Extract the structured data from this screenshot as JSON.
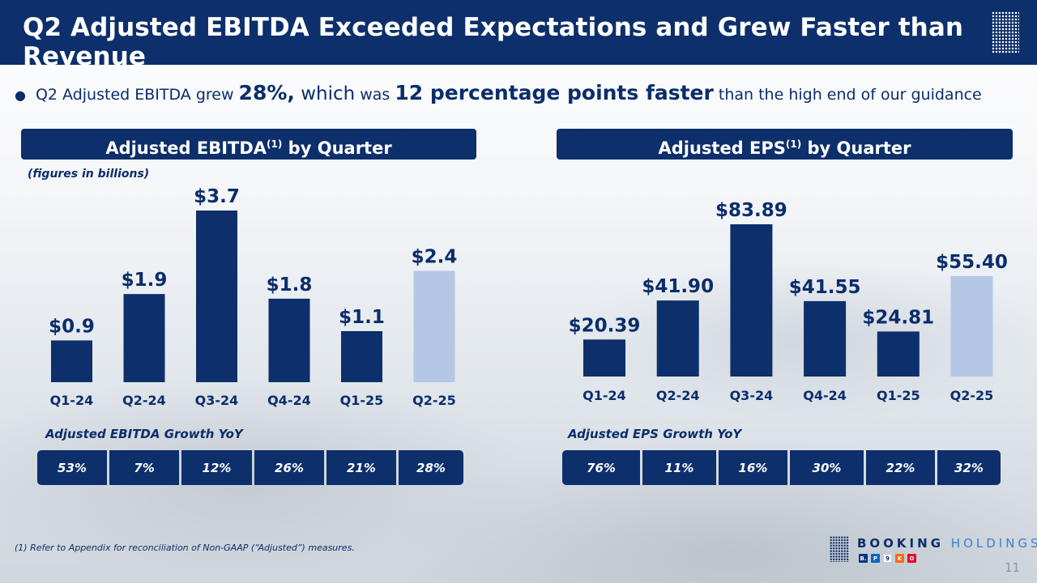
{
  "header": {
    "title": "Q2 Adjusted EBITDA Exceeded Expectations and Grew Faster than Revenue"
  },
  "bullet": {
    "marker": "●",
    "part1": "Q2 Adjusted EBITDA grew ",
    "highlight1": "28%,",
    "part2": " which",
    "part3": " was ",
    "highlight2": "12 percentage points faster",
    "part4": " than the high end of our guidance"
  },
  "panels": {
    "ebitda": {
      "header_text": "Adjusted EBITDA",
      "header_sup": "(1)",
      "header_suffix": " by Quarter",
      "note": "(figures in billions)",
      "growth_title": "Adjusted EBITDA Growth YoY",
      "growth": [
        "53%",
        "7%",
        "12%",
        "26%",
        "21%",
        "28%"
      ]
    },
    "eps": {
      "header_text": "Adjusted EPS",
      "header_sup": "(1)",
      "header_suffix": " by Quarter",
      "growth_title": "Adjusted EPS Growth YoY",
      "growth": [
        "76%",
        "11%",
        "16%",
        "30%",
        "22%",
        "32%"
      ]
    }
  },
  "chart_data": [
    {
      "type": "bar",
      "title": "Adjusted EBITDA by Quarter",
      "unit": "billions",
      "categories": [
        "Q1-24",
        "Q2-24",
        "Q3-24",
        "Q4-24",
        "Q1-25",
        "Q2-25"
      ],
      "values": [
        0.9,
        1.9,
        3.7,
        1.8,
        1.1,
        2.4
      ],
      "labels": [
        "$0.9",
        "$1.9",
        "$3.7",
        "$1.8",
        "$1.1",
        "$2.4"
      ],
      "highlight_index": 5,
      "ylim": [
        0,
        3.7
      ],
      "colors": {
        "bar": "#0d2f6b",
        "highlight": "#b4c7e7"
      }
    },
    {
      "type": "bar",
      "title": "Adjusted EPS by Quarter",
      "categories": [
        "Q1-24",
        "Q2-24",
        "Q3-24",
        "Q4-24",
        "Q1-25",
        "Q2-25"
      ],
      "values": [
        20.39,
        41.9,
        83.89,
        41.55,
        24.81,
        55.4
      ],
      "labels": [
        "$20.39",
        "$41.90",
        "$83.89",
        "$41.55",
        "$24.81",
        "$55.40"
      ],
      "highlight_index": 5,
      "ylim": [
        0,
        83.89
      ],
      "colors": {
        "bar": "#0d2f6b",
        "highlight": "#b4c7e7"
      }
    }
  ],
  "footnote": "(1) Refer to Appendix for reconciliation of Non-GAAP (“Adjusted”) measures.",
  "logo": {
    "word1": "BOOKING",
    "word2": "HOLDINGS",
    "brands": [
      {
        "letter": "B.",
        "color": "#003580"
      },
      {
        "letter": "P",
        "color": "#0067c5"
      },
      {
        "letter": "9",
        "color": "#ffffff"
      },
      {
        "letter": "K",
        "color": "#ff690f"
      },
      {
        "letter": "O",
        "color": "#e4032e"
      }
    ]
  },
  "page_number": "11"
}
